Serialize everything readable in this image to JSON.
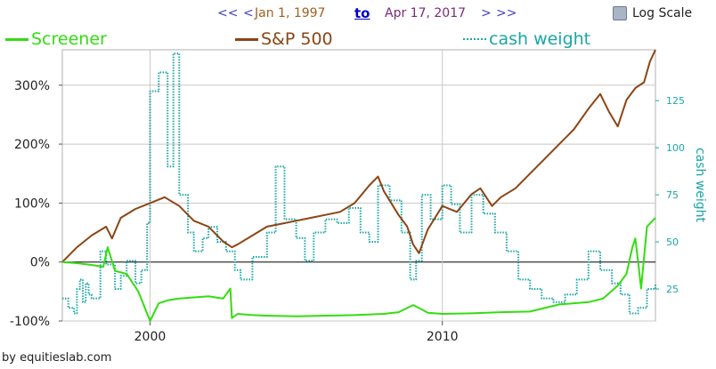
{
  "header": {
    "nav_back_far": "<<",
    "nav_back": "<",
    "start_date": "Jan 1, 1997",
    "to_label": "to",
    "end_date": "Apr 17, 2017",
    "nav_forward": ">",
    "nav_forward_far": ">>",
    "log_scale_label": "Log Scale",
    "log_scale_checked": false
  },
  "colors": {
    "screener": "#33dd11",
    "sp500": "#8b4513",
    "cash": "#1aa6a6",
    "grid": "#c8c8c8",
    "zero": "#000000"
  },
  "credit": "by equitieslab.com",
  "chart_data": {
    "type": "line",
    "x_range": [
      1997.0,
      2017.29
    ],
    "x_ticks": [
      {
        "value": 2000,
        "label": "2000"
      },
      {
        "value": 2010,
        "label": "2010"
      }
    ],
    "y_left": {
      "range": [
        -100,
        360
      ],
      "ticks": [
        {
          "value": 300,
          "label": "300%"
        },
        {
          "value": 200,
          "label": "200%"
        },
        {
          "value": 100,
          "label": "100%"
        },
        {
          "value": 0,
          "label": "0%"
        },
        {
          "value": -100,
          "label": "-100%"
        }
      ]
    },
    "y_right": {
      "label": "cash weight",
      "range": [
        8,
        152
      ],
      "ticks": [
        {
          "value": 125,
          "label": "125"
        },
        {
          "value": 100,
          "label": "100"
        },
        {
          "value": 75,
          "label": "75"
        },
        {
          "value": 50,
          "label": "50"
        },
        {
          "value": 25,
          "label": "25"
        }
      ]
    },
    "grid": true,
    "legend_position": "top",
    "series": [
      {
        "name": "Screener",
        "axis": "left",
        "style": "solid",
        "x": [
          1997.0,
          1997.5,
          1998.0,
          1998.4,
          1998.55,
          1998.8,
          1999.2,
          1999.6,
          2000.0,
          2000.3,
          2000.6,
          2001.0,
          2001.5,
          2002.0,
          2002.5,
          2002.75,
          2002.8,
          2003.0,
          2003.5,
          2004.0,
          2005.0,
          2006.0,
          2007.0,
          2008.0,
          2008.5,
          2009.0,
          2009.2,
          2009.5,
          2010.0,
          2011.0,
          2012.0,
          2013.0,
          2013.5,
          2014.0,
          2015.0,
          2015.5,
          2016.0,
          2016.3,
          2016.5,
          2016.6,
          2016.7,
          2016.8,
          2017.0,
          2017.29
        ],
        "y": [
          0,
          -2,
          -5,
          -8,
          25,
          -15,
          -20,
          -50,
          -100,
          -70,
          -65,
          -62,
          -60,
          -58,
          -62,
          -45,
          -95,
          -88,
          -90,
          -91,
          -92,
          -91,
          -90,
          -88,
          -85,
          -73,
          -78,
          -86,
          -88,
          -87,
          -85,
          -84,
          -78,
          -72,
          -68,
          -62,
          -40,
          -20,
          25,
          40,
          0,
          -45,
          60,
          75
        ]
      },
      {
        "name": "S&P 500",
        "axis": "left",
        "style": "solid",
        "x": [
          1997.0,
          1997.5,
          1998.0,
          1998.5,
          1998.7,
          1999.0,
          1999.5,
          2000.0,
          2000.5,
          2001.0,
          2001.5,
          2002.0,
          2002.5,
          2002.8,
          2003.0,
          2003.5,
          2004.0,
          2004.5,
          2005.0,
          2005.5,
          2006.0,
          2006.5,
          2007.0,
          2007.5,
          2007.8,
          2008.0,
          2008.5,
          2008.8,
          2009.0,
          2009.2,
          2009.5,
          2010.0,
          2010.5,
          2011.0,
          2011.3,
          2011.7,
          2012.0,
          2012.5,
          2013.0,
          2013.5,
          2014.0,
          2014.5,
          2015.0,
          2015.4,
          2015.7,
          2016.0,
          2016.3,
          2016.6,
          2016.9,
          2017.1,
          2017.29
        ],
        "y": [
          0,
          25,
          45,
          60,
          40,
          75,
          90,
          100,
          110,
          95,
          70,
          60,
          35,
          25,
          30,
          45,
          60,
          65,
          70,
          75,
          80,
          85,
          100,
          130,
          145,
          120,
          80,
          60,
          30,
          15,
          55,
          95,
          85,
          115,
          125,
          95,
          110,
          125,
          150,
          175,
          200,
          225,
          260,
          285,
          255,
          230,
          275,
          295,
          305,
          340,
          360
        ]
      },
      {
        "name": "cash weight",
        "axis": "right",
        "style": "dotted",
        "x": [
          1997.0,
          1997.2,
          1997.4,
          1997.5,
          1997.6,
          1997.7,
          1997.8,
          1997.9,
          1998.0,
          1998.3,
          1998.5,
          1998.8,
          1999.0,
          1999.2,
          1999.5,
          1999.7,
          1999.9,
          2000.0,
          2000.3,
          2000.6,
          2000.8,
          2001.0,
          2001.3,
          2001.5,
          2001.8,
          2002.0,
          2002.3,
          2002.6,
          2002.9,
          2003.1,
          2003.5,
          2004.0,
          2004.3,
          2004.6,
          2005.0,
          2005.3,
          2005.6,
          2006.0,
          2006.4,
          2006.8,
          2007.2,
          2007.5,
          2007.8,
          2008.2,
          2008.6,
          2008.9,
          2009.1,
          2009.3,
          2009.6,
          2010.0,
          2010.3,
          2010.6,
          2011.0,
          2011.4,
          2011.8,
          2012.2,
          2012.6,
          2013.0,
          2013.4,
          2013.8,
          2014.2,
          2014.6,
          2015.0,
          2015.4,
          2015.8,
          2016.1,
          2016.4,
          2016.7,
          2017.0,
          2017.29
        ],
        "y": [
          20,
          15,
          12,
          25,
          30,
          18,
          28,
          22,
          20,
          45,
          38,
          25,
          32,
          40,
          28,
          35,
          60,
          130,
          140,
          90,
          150,
          75,
          55,
          45,
          52,
          58,
          50,
          45,
          35,
          30,
          42,
          55,
          90,
          62,
          52,
          40,
          55,
          62,
          60,
          68,
          55,
          50,
          80,
          72,
          55,
          30,
          40,
          75,
          62,
          80,
          70,
          55,
          75,
          65,
          55,
          45,
          30,
          25,
          20,
          18,
          22,
          30,
          45,
          35,
          28,
          22,
          12,
          15,
          25,
          28
        ]
      }
    ]
  }
}
